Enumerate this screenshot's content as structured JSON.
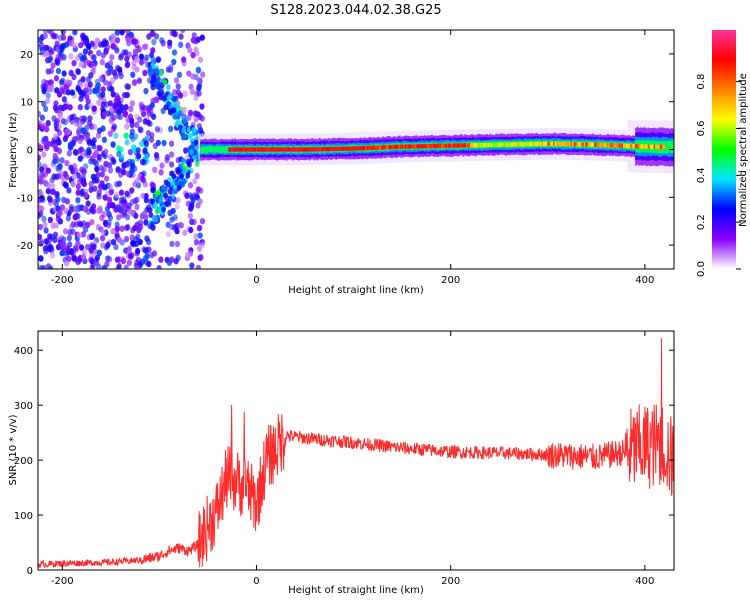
{
  "title": "S128.2023.044.02.38.G25",
  "chart_data": [
    {
      "type": "heatmap",
      "title": "S128.2023.044.02.38.G25",
      "xlabel": "Height of straight line (km)",
      "ylabel": "Frequency (Hz)",
      "xlim": [
        -225,
        430
      ],
      "ylim": [
        -25,
        25
      ],
      "xticks": [
        "-200",
        "0",
        "200",
        "400"
      ],
      "yticks": [
        "20",
        "10",
        "0",
        "-10",
        "-20"
      ],
      "colorbar": {
        "label": "Normalized spectral amplitude",
        "range": [
          0,
          1
        ],
        "ticks": [
          "0.0",
          "0.2",
          "0.4",
          "0.6",
          "0.8"
        ],
        "colors": [
          "#ffffff",
          "#8a00ff",
          "#0000ff",
          "#00e5ff",
          "#00ff00",
          "#ffff00",
          "#ff8000",
          "#ff0000",
          "#ff3399"
        ]
      },
      "ridge": [
        {
          "x": -60,
          "y": 0.0
        },
        {
          "x": -20,
          "y": 0.0
        },
        {
          "x": 0,
          "y": 0.0
        },
        {
          "x": 50,
          "y": 0.0
        },
        {
          "x": 100,
          "y": 0.2
        },
        {
          "x": 150,
          "y": 0.6
        },
        {
          "x": 200,
          "y": 0.8
        },
        {
          "x": 250,
          "y": 1.0
        },
        {
          "x": 300,
          "y": 1.2
        },
        {
          "x": 350,
          "y": 1.0
        },
        {
          "x": 400,
          "y": 0.6
        },
        {
          "x": 430,
          "y": 0.5
        }
      ]
    },
    {
      "type": "line",
      "xlabel": "Height of straight line (km)",
      "ylabel": "SNR (10 * v/v)",
      "xlim": [
        -225,
        430
      ],
      "ylim": [
        0,
        435
      ],
      "xticks": [
        "-200",
        "0",
        "200",
        "400"
      ],
      "yticks": [
        "0",
        "100",
        "200",
        "300",
        "400"
      ],
      "color": "#ff2a2a",
      "series": [
        {
          "x": [
            -225,
            -200,
            -150,
            -120,
            -100,
            -90,
            -80,
            -70,
            -60,
            -50,
            -40,
            -30,
            -20,
            -10,
            0,
            10,
            20,
            30,
            50,
            100,
            150,
            200,
            250,
            300,
            350,
            380,
            400,
            420,
            430
          ],
          "values": [
            10,
            12,
            14,
            18,
            25,
            35,
            40,
            35,
            45,
            80,
            110,
            170,
            160,
            150,
            120,
            200,
            220,
            245,
            240,
            232,
            222,
            215,
            213,
            210,
            205,
            215,
            225,
            230,
            190
          ]
        }
      ]
    }
  ]
}
